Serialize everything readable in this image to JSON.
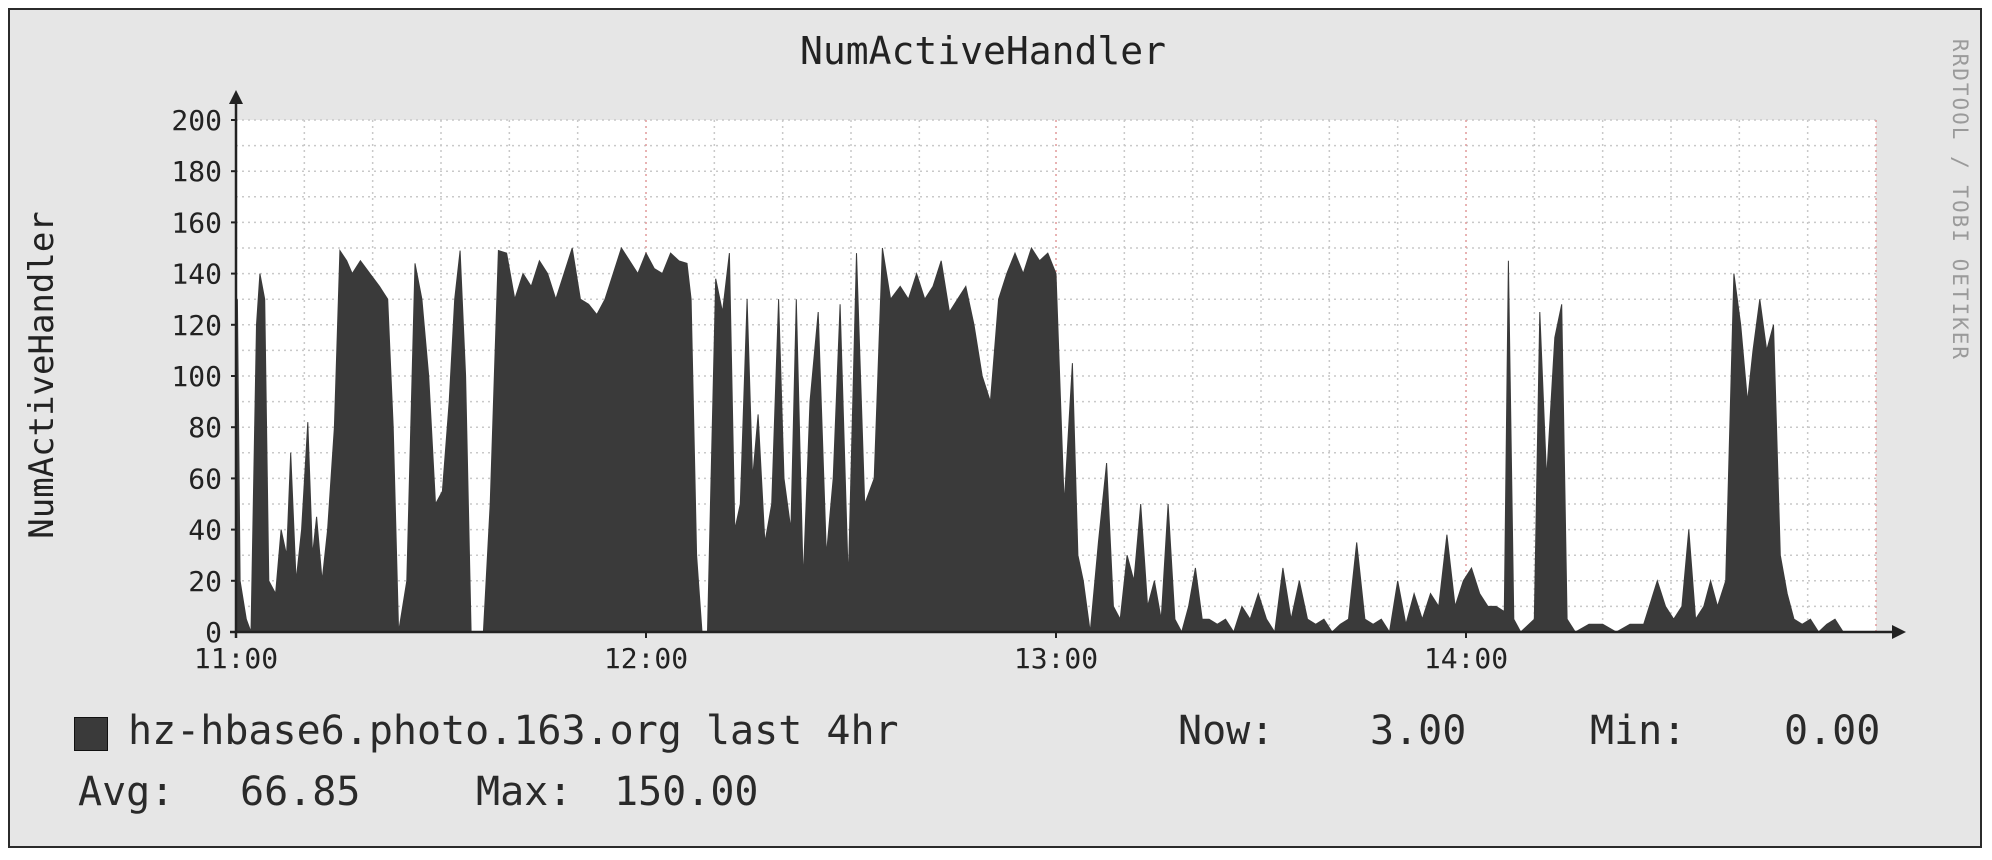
{
  "chart_data": {
    "type": "area",
    "title": "NumActiveHandler",
    "ylabel": "NumActiveHandler",
    "xlabel": "",
    "ylim": [
      0,
      200
    ],
    "yticks": [
      "0",
      "20",
      "40",
      "60",
      "80",
      "100",
      "120",
      "140",
      "160",
      "180",
      "200"
    ],
    "xticks": [
      {
        "label": "11:00",
        "minute": 0
      },
      {
        "label": "12:00",
        "minute": 60
      },
      {
        "label": "13:00",
        "minute": 120
      },
      {
        "label": "14:00",
        "minute": 180
      }
    ],
    "xlim_minutes": [
      0,
      240
    ],
    "grid": true,
    "color": "#3a3a3a",
    "series": [
      {
        "name": "hz-hbase6.photo.163.org last 4hr",
        "points": [
          [
            0,
            0
          ],
          [
            0.2,
            130
          ],
          [
            0.6,
            20
          ],
          [
            1.5,
            5
          ],
          [
            2.2,
            0
          ],
          [
            3,
            120
          ],
          [
            3.5,
            140
          ],
          [
            4.2,
            130
          ],
          [
            4.8,
            20
          ],
          [
            5.8,
            15
          ],
          [
            6.6,
            40
          ],
          [
            7.4,
            30
          ],
          [
            8,
            70
          ],
          [
            8.8,
            20
          ],
          [
            9.6,
            40
          ],
          [
            10.5,
            82
          ],
          [
            11.2,
            30
          ],
          [
            11.8,
            45
          ],
          [
            12.6,
            20
          ],
          [
            13.4,
            40
          ],
          [
            14.4,
            80
          ],
          [
            15.2,
            149
          ],
          [
            16.2,
            145
          ],
          [
            17,
            140
          ],
          [
            18.2,
            145
          ],
          [
            19.6,
            140
          ],
          [
            21,
            135
          ],
          [
            22.2,
            130
          ],
          [
            23,
            80
          ],
          [
            23.8,
            0
          ],
          [
            25,
            20
          ],
          [
            26.2,
            144
          ],
          [
            27.2,
            130
          ],
          [
            28.2,
            100
          ],
          [
            29.2,
            50
          ],
          [
            30.2,
            55
          ],
          [
            31.2,
            90
          ],
          [
            32,
            130
          ],
          [
            32.8,
            149
          ],
          [
            33.6,
            100
          ],
          [
            34.4,
            0
          ],
          [
            36.2,
            0
          ],
          [
            37.2,
            50
          ],
          [
            38.4,
            149
          ],
          [
            39.6,
            148
          ],
          [
            40.8,
            130
          ],
          [
            42,
            140
          ],
          [
            43.2,
            135
          ],
          [
            44.4,
            145
          ],
          [
            45.6,
            140
          ],
          [
            46.8,
            130
          ],
          [
            48,
            140
          ],
          [
            49.2,
            150
          ],
          [
            50.4,
            130
          ],
          [
            51.6,
            128
          ],
          [
            52.8,
            124
          ],
          [
            54,
            130
          ],
          [
            55.2,
            140
          ],
          [
            56.4,
            150
          ],
          [
            57.6,
            145
          ],
          [
            58.8,
            140
          ],
          [
            60,
            148
          ],
          [
            61.2,
            142
          ],
          [
            62.4,
            140
          ],
          [
            63.6,
            148
          ],
          [
            64.8,
            145
          ],
          [
            66,
            144
          ],
          [
            66.6,
            130
          ],
          [
            67.4,
            30
          ],
          [
            68.2,
            0
          ],
          [
            69,
            0
          ],
          [
            70.2,
            138
          ],
          [
            71.2,
            125
          ],
          [
            72.2,
            148
          ],
          [
            73,
            40
          ],
          [
            73.8,
            50
          ],
          [
            74.8,
            130
          ],
          [
            75.6,
            60
          ],
          [
            76.4,
            85
          ],
          [
            77.4,
            35
          ],
          [
            78.4,
            50
          ],
          [
            79.4,
            130
          ],
          [
            80.2,
            60
          ],
          [
            81.2,
            40
          ],
          [
            82,
            130
          ],
          [
            83,
            20
          ],
          [
            84,
            90
          ],
          [
            85.2,
            125
          ],
          [
            86.4,
            30
          ],
          [
            87.4,
            60
          ],
          [
            88.4,
            128
          ],
          [
            89.6,
            20
          ],
          [
            90.8,
            148
          ],
          [
            92,
            50
          ],
          [
            93.4,
            60
          ],
          [
            94.6,
            150
          ],
          [
            95.8,
            130
          ],
          [
            97.2,
            135
          ],
          [
            98.4,
            130
          ],
          [
            99.6,
            140
          ],
          [
            100.8,
            130
          ],
          [
            102,
            135
          ],
          [
            103.2,
            145
          ],
          [
            104.4,
            125
          ],
          [
            105.6,
            130
          ],
          [
            106.8,
            135
          ],
          [
            108,
            120
          ],
          [
            109.2,
            100
          ],
          [
            110.4,
            90
          ],
          [
            111.6,
            130
          ],
          [
            112.8,
            140
          ],
          [
            114,
            148
          ],
          [
            115.2,
            140
          ],
          [
            116.4,
            150
          ],
          [
            117.6,
            145
          ],
          [
            118.8,
            148
          ],
          [
            120,
            140
          ],
          [
            121.2,
            50
          ],
          [
            122.4,
            105
          ],
          [
            123.2,
            30
          ],
          [
            124,
            20
          ],
          [
            125,
            0
          ],
          [
            126.2,
            35
          ],
          [
            127.4,
            66
          ],
          [
            128.4,
            10
          ],
          [
            129.4,
            5
          ],
          [
            130.4,
            30
          ],
          [
            131.4,
            20
          ],
          [
            132.4,
            50
          ],
          [
            133.4,
            10
          ],
          [
            134.4,
            20
          ],
          [
            135.4,
            5
          ],
          [
            136.4,
            50
          ],
          [
            137.4,
            5
          ],
          [
            138.4,
            0
          ],
          [
            139.4,
            10
          ],
          [
            140.4,
            25
          ],
          [
            141.4,
            5
          ],
          [
            142.4,
            5
          ],
          [
            143.6,
            3
          ],
          [
            144.8,
            5
          ],
          [
            146,
            0
          ],
          [
            147.2,
            10
          ],
          [
            148.4,
            5
          ],
          [
            149.6,
            15
          ],
          [
            150.8,
            5
          ],
          [
            152,
            0
          ],
          [
            153.2,
            25
          ],
          [
            154.4,
            5
          ],
          [
            155.6,
            20
          ],
          [
            156.8,
            5
          ],
          [
            158,
            3
          ],
          [
            159.2,
            5
          ],
          [
            160.4,
            0
          ],
          [
            161.6,
            3
          ],
          [
            162.8,
            5
          ],
          [
            164,
            35
          ],
          [
            165.2,
            5
          ],
          [
            166.4,
            3
          ],
          [
            167.6,
            5
          ],
          [
            168.8,
            0
          ],
          [
            170,
            20
          ],
          [
            171.2,
            3
          ],
          [
            172.4,
            15
          ],
          [
            173.6,
            5
          ],
          [
            174.8,
            15
          ],
          [
            176,
            10
          ],
          [
            177.2,
            38
          ],
          [
            178.4,
            10
          ],
          [
            179.6,
            20
          ],
          [
            180.8,
            25
          ],
          [
            182,
            15
          ],
          [
            183.2,
            10
          ],
          [
            184.4,
            10
          ],
          [
            185.6,
            8
          ],
          [
            186.2,
            145
          ],
          [
            187,
            5
          ],
          [
            188,
            0
          ],
          [
            190,
            5
          ],
          [
            190.8,
            125
          ],
          [
            191.8,
            60
          ],
          [
            193,
            115
          ],
          [
            194,
            128
          ],
          [
            194.8,
            5
          ],
          [
            196,
            0
          ],
          [
            198,
            3
          ],
          [
            200,
            3
          ],
          [
            202,
            0
          ],
          [
            204,
            3
          ],
          [
            206,
            3
          ],
          [
            208,
            20
          ],
          [
            209.2,
            10
          ],
          [
            210.4,
            5
          ],
          [
            211.6,
            10
          ],
          [
            212.6,
            40
          ],
          [
            213.6,
            5
          ],
          [
            214.8,
            10
          ],
          [
            215.8,
            20
          ],
          [
            216.8,
            10
          ],
          [
            218,
            20
          ],
          [
            219.2,
            140
          ],
          [
            220.2,
            120
          ],
          [
            221.2,
            90
          ],
          [
            222,
            110
          ],
          [
            223,
            130
          ],
          [
            224,
            110
          ],
          [
            225,
            120
          ],
          [
            226,
            30
          ],
          [
            227,
            15
          ],
          [
            228,
            5
          ],
          [
            229.2,
            3
          ],
          [
            230.4,
            5
          ],
          [
            231.6,
            0
          ],
          [
            232.8,
            3
          ],
          [
            234,
            5
          ],
          [
            235.2,
            0
          ],
          [
            236,
            0
          ]
        ]
      }
    ]
  },
  "watermark": "RRDTOOL / TOBI OETIKER",
  "legend": {
    "name": "hz-hbase6.photo.163.org last 4hr",
    "now_label": "Now:",
    "now_value": "3.00",
    "min_label": "Min:",
    "min_value": "0.00",
    "avg_label": "Avg:",
    "avg_value": "66.85",
    "max_label": "Max:",
    "max_value": "150.00"
  }
}
